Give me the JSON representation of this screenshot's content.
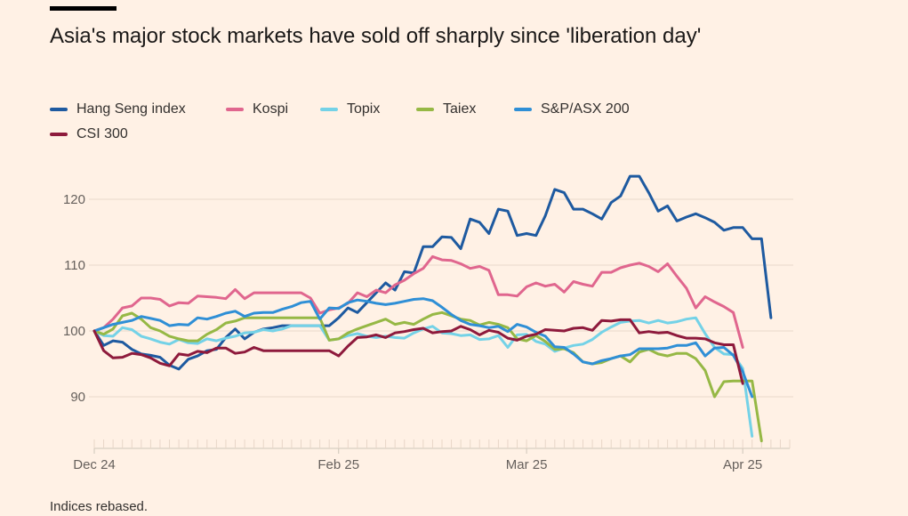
{
  "header": {
    "title": "Asia's major stock markets have sold off sharply since 'liberation day'"
  },
  "footer": {
    "note": "Indices rebased."
  },
  "chart_data": {
    "type": "line",
    "title": "Asia's major stock markets have sold off sharply since 'liberation day'",
    "xlabel": "",
    "ylabel": "",
    "ylim": [
      82,
      125
    ],
    "yticks": [
      90,
      100,
      110,
      120
    ],
    "xticks": [
      {
        "label": "Dec 24",
        "x": 0
      },
      {
        "label": "Feb 25",
        "x": 26
      },
      {
        "label": "Mar 25",
        "x": 46
      },
      {
        "label": "Apr 25",
        "x": 69
      }
    ],
    "x_count": 75,
    "grid": true,
    "legend_position": "top-left",
    "series": [
      {
        "name": "Hang Seng index",
        "color": "#1e5aa0",
        "values": [
          100,
          97.8,
          98.5,
          98.3,
          97.2,
          96.5,
          96.3,
          96,
          94.8,
          94.2,
          95.7,
          96.2,
          97,
          97.2,
          99,
          100.3,
          98.8,
          99.8,
          100.3,
          100.5,
          100.8,
          100.8,
          100.8,
          100.8,
          100.8,
          100.8,
          102,
          103.5,
          102.8,
          104.3,
          105.8,
          107.3,
          106.2,
          109,
          108.8,
          112.8,
          112.8,
          114.3,
          114.2,
          112.5,
          117,
          116.5,
          114.8,
          118.5,
          118.2,
          114.5,
          114.8,
          114.5,
          117.5,
          121.5,
          121,
          118.5,
          118.5,
          117.8,
          117,
          119.5,
          120.5,
          123.5,
          123.5,
          121,
          118.2,
          119,
          116.7,
          117.3,
          117.8,
          117.2,
          116.5,
          115.3,
          115.7,
          115.7,
          114,
          114,
          102,
          null,
          null
        ]
      },
      {
        "name": "Kospi",
        "color": "#e0668e",
        "values": [
          100,
          100.5,
          101.8,
          103.5,
          103.8,
          105,
          105,
          104.8,
          103.8,
          104.3,
          104.2,
          105.3,
          105.2,
          105.1,
          104.9,
          106.3,
          104.9,
          105.8,
          105.8,
          105.8,
          105.8,
          105.8,
          105.8,
          105,
          102.7,
          103.2,
          103.5,
          104.2,
          105.8,
          105.2,
          106.2,
          105.8,
          107,
          107.7,
          108.7,
          109.5,
          111.3,
          110.8,
          110.7,
          110.2,
          109.5,
          109.8,
          109.2,
          105.5,
          105.5,
          105.3,
          106.7,
          107.3,
          106.8,
          107.1,
          105.9,
          107.5,
          107.1,
          106.8,
          108.9,
          108.9,
          109.6,
          110,
          110.3,
          109.8,
          109,
          110.2,
          108.3,
          106.5,
          103.5,
          105.2,
          104.4,
          103.7,
          102.8,
          97.5,
          null,
          null,
          null,
          null,
          null
        ]
      },
      {
        "name": "Topix",
        "color": "#74d2e7",
        "values": [
          100,
          99.3,
          99.2,
          100.5,
          100.2,
          99.2,
          98.8,
          98.3,
          98,
          98.7,
          98.2,
          98.1,
          98.8,
          98.5,
          98.9,
          99.2,
          99.7,
          99.8,
          100.2,
          100,
          100.3,
          100.8,
          100.8,
          100.8,
          100.8,
          98.6,
          98.8,
          99.3,
          99.6,
          99.2,
          99,
          99.2,
          99,
          98.9,
          99.7,
          100.3,
          100.7,
          99.7,
          99.6,
          99.3,
          99.4,
          98.7,
          98.8,
          99.3,
          97.5,
          99.4,
          99.5,
          98.4,
          98,
          96.9,
          97.4,
          97.8,
          98,
          98.7,
          99.8,
          100.6,
          101.3,
          101.5,
          101.6,
          101.2,
          101.6,
          101.2,
          101.4,
          101.8,
          102,
          99.6,
          97.5,
          96.5,
          96.4,
          94.3,
          84,
          null,
          null,
          null,
          null
        ]
      },
      {
        "name": "Taiex",
        "color": "#96b845",
        "values": [
          100,
          99.5,
          100.3,
          102.3,
          102.7,
          101.8,
          100.5,
          100,
          99.2,
          98.8,
          98.5,
          98.5,
          99.5,
          100.2,
          101.2,
          101.5,
          102,
          102,
          102,
          102,
          102,
          102,
          102,
          102,
          102,
          98.6,
          98.8,
          99.7,
          100.3,
          100.8,
          101.3,
          101.8,
          101,
          101.3,
          101,
          101.8,
          102.5,
          102.8,
          102.3,
          101.8,
          101.6,
          100.9,
          101.3,
          101,
          100.5,
          98.8,
          98.5,
          99.3,
          98.4,
          97.2,
          97.3,
          96.7,
          95.3,
          95,
          95.2,
          95.8,
          96.2,
          95.3,
          96.8,
          97.2,
          96.5,
          96.2,
          96.6,
          96.6,
          95.8,
          94,
          90,
          92.3,
          92.4,
          92.4,
          92.4,
          83.3,
          null,
          null,
          null
        ]
      },
      {
        "name": "S&P/ASX 200",
        "color": "#2f8fd6",
        "values": [
          100,
          100.5,
          101,
          101.3,
          101.6,
          102.2,
          101.9,
          101.6,
          100.8,
          101,
          100.9,
          102,
          101.8,
          102.2,
          102.7,
          103,
          102.2,
          102.7,
          102.8,
          102.8,
          103.3,
          103.7,
          104.3,
          104.5,
          101.8,
          103.5,
          103.4,
          104.3,
          104.7,
          104.5,
          104.2,
          104,
          104.2,
          104.5,
          104.8,
          104.9,
          104.6,
          103.6,
          102.5,
          101.6,
          101,
          100.8,
          100.5,
          100.7,
          99.9,
          101,
          100.6,
          99.8,
          99.2,
          97.6,
          97.5,
          96.5,
          95.3,
          95,
          95.5,
          95.8,
          96.2,
          96.4,
          97.3,
          97.3,
          97.3,
          97.4,
          97.8,
          97.8,
          98.2,
          96.2,
          97.4,
          97.5,
          96.3,
          93.8,
          90,
          null,
          null,
          null,
          null
        ]
      },
      {
        "name": "CSI 300",
        "color": "#8e1a3c",
        "values": [
          100,
          97,
          95.9,
          96,
          96.6,
          96.4,
          95.9,
          95.1,
          94.7,
          96.5,
          96.3,
          96.9,
          96.7,
          97.4,
          97.4,
          96.6,
          96.8,
          97.5,
          97,
          97,
          97,
          97,
          97,
          97,
          97,
          97,
          96.2,
          97.7,
          99,
          99.1,
          99.4,
          99,
          99.7,
          99.9,
          100.2,
          100.4,
          99.7,
          99.9,
          100,
          100.7,
          100.2,
          99.4,
          100.1,
          99.8,
          98.9,
          98.6,
          99.2,
          99.5,
          100.2,
          100.1,
          100,
          100.4,
          100.5,
          100.1,
          101.6,
          101.5,
          101.7,
          101.7,
          99.7,
          99.9,
          99.7,
          99.8,
          99.3,
          98.9,
          98.9,
          98.8,
          98.2,
          97.9,
          97.9,
          92,
          null,
          null,
          null,
          null,
          null
        ]
      }
    ]
  }
}
